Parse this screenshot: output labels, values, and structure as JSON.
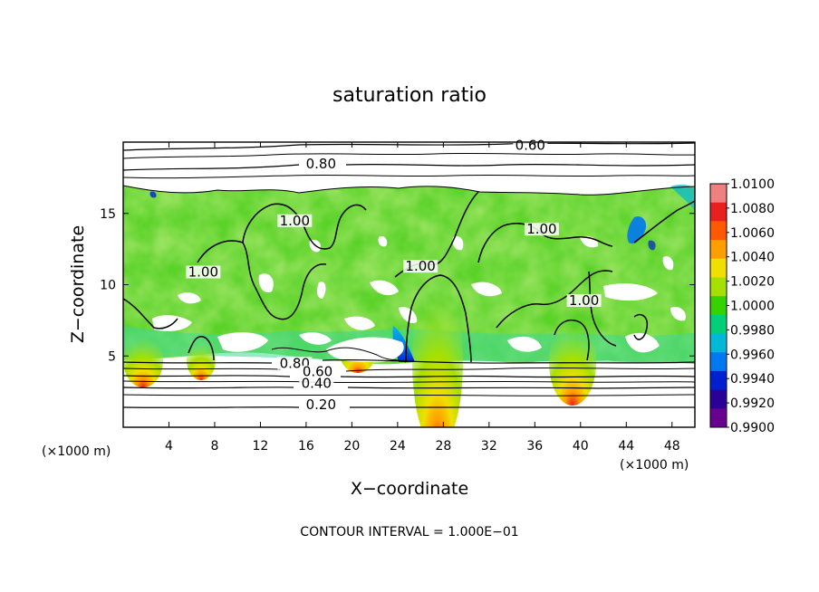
{
  "chart_data": {
    "type": "heatmap",
    "title": "saturation ratio",
    "xlabel": "X−coordinate",
    "ylabel": "Z−coordinate",
    "x_unit": "(×1000 m)",
    "y_unit": "(×1000 m)",
    "xlim": [
      0,
      50
    ],
    "ylim": [
      0,
      20
    ],
    "x_ticks": [
      4,
      8,
      12,
      16,
      20,
      24,
      28,
      32,
      36,
      40,
      44,
      48
    ],
    "y_ticks": [
      5,
      10,
      15
    ],
    "colorbar": {
      "range": [
        0.99,
        1.01
      ],
      "ticks": [
        "1.0100",
        "1.0080",
        "1.0060",
        "1.0040",
        "1.0020",
        "1.0000",
        "0.9980",
        "0.9960",
        "0.9940",
        "0.9920",
        "0.9900"
      ],
      "colors": [
        "#f08080",
        "#e82020",
        "#ff5a00",
        "#ff9e00",
        "#f0e000",
        "#a6e000",
        "#36d200",
        "#00cf7a",
        "#00b8d8",
        "#0078f0",
        "#0020d0",
        "#2a0098",
        "#6a0090"
      ]
    },
    "colors": {
      "field": "#5ad228",
      "field_light": "#8ee03a",
      "field_cyan": "#3cd896",
      "saturated_edge": "#e82020",
      "subsat_core": "#0020d0"
    },
    "contour_labels": [
      {
        "text": "0.60",
        "x": 35.6,
        "y": 19.6
      },
      {
        "text": "0.80",
        "x": 17.3,
        "y": 18.3
      },
      {
        "text": "1.00",
        "x": 15.0,
        "y": 14.3
      },
      {
        "text": "1.00",
        "x": 7.0,
        "y": 10.7
      },
      {
        "text": "1.00",
        "x": 26.0,
        "y": 11.1
      },
      {
        "text": "1.00",
        "x": 36.6,
        "y": 13.7
      },
      {
        "text": "1.00",
        "x": 40.3,
        "y": 8.7
      },
      {
        "text": "0.80",
        "x": 15.0,
        "y": 4.3
      },
      {
        "text": "0.60",
        "x": 17.0,
        "y": 3.7
      },
      {
        "text": "0.40",
        "x": 16.9,
        "y": 2.9
      },
      {
        "text": "0.20",
        "x": 17.3,
        "y": 1.4
      }
    ],
    "footer": "CONTOUR INTERVAL = 1.000E−01"
  }
}
